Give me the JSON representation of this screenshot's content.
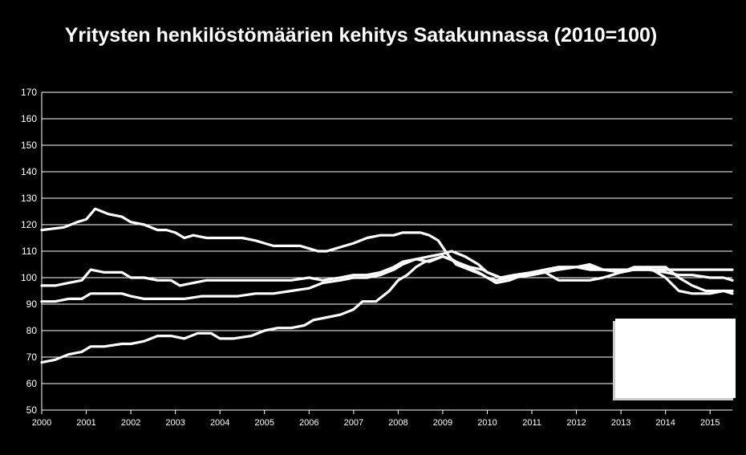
{
  "chart_data": {
    "type": "line",
    "title": "Yritysten henkilöstömäärien kehitys Satakunnassa (2010=100)",
    "xlabel": "",
    "ylabel": "",
    "ylim": [
      50,
      170
    ],
    "xlim": [
      2000,
      2015.5
    ],
    "y_ticks": [
      "50",
      "60",
      "70",
      "80",
      "90",
      "100",
      "110",
      "120",
      "130",
      "140",
      "150",
      "160",
      "170"
    ],
    "x_ticks": [
      "2000",
      "2001",
      "2002",
      "2003",
      "2004",
      "2005",
      "2006",
      "2007",
      "2008",
      "2009",
      "2010",
      "2011",
      "2012",
      "2013",
      "2014",
      "2015"
    ],
    "grid": true,
    "legend": "none",
    "colors": {
      "background": "#000000",
      "lines": "#ffffff",
      "grid": "#ffffff",
      "legend_box": "#ffffff"
    },
    "series": [
      {
        "x": [
          2000,
          2000.5,
          2000.8,
          2001.0,
          2001.2,
          2001.5,
          2001.8,
          2002.0,
          2002.3,
          2002.6,
          2002.8,
          2003.0,
          2003.2,
          2003.4,
          2003.7,
          2004.0,
          2004.3,
          2004.5,
          2004.8,
          2005.0,
          2005.2,
          2005.4,
          2005.6,
          2005.8,
          2006.0,
          2006.2,
          2006.4,
          2006.6,
          2006.8,
          2007.0,
          2007.3,
          2007.6,
          2007.9,
          2008.1,
          2008.3,
          2008.5,
          2008.7,
          2008.9,
          2009.1,
          2009.3,
          2009.6,
          2009.9,
          2010.0,
          2010.2,
          2010.5,
          2010.8,
          2011.0,
          2011.3,
          2011.6,
          2012.0,
          2012.3,
          2012.6,
          2013.0,
          2013.3,
          2013.6,
          2013.9,
          2014.2,
          2014.5,
          2014.8,
          2015.0,
          2015.3,
          2015.5
        ],
        "y": [
          118,
          119,
          121,
          122,
          126,
          124,
          123,
          121,
          120,
          118,
          118,
          117,
          115,
          116,
          115,
          115,
          115,
          115,
          114,
          113,
          112,
          112,
          112,
          112,
          111,
          110,
          110,
          111,
          112,
          113,
          115,
          116,
          116,
          117,
          117,
          117,
          116,
          114,
          109,
          105,
          103,
          101,
          100,
          99,
          100,
          101,
          102,
          103,
          104,
          104,
          104,
          103,
          103,
          103,
          103,
          103,
          103,
          103,
          103,
          103,
          103,
          103
        ]
      },
      {
        "x": [
          2000,
          2000.3,
          2000.6,
          2000.9,
          2001.1,
          2001.4,
          2001.8,
          2002.0,
          2002.3,
          2002.6,
          2002.9,
          2003.1,
          2003.4,
          2003.7,
          2004.0,
          2004.4,
          2004.8,
          2005.2,
          2005.6,
          2006.0,
          2006.3,
          2006.7,
          2007.0,
          2007.3,
          2007.6,
          2007.9,
          2008.1,
          2008.4,
          2008.7,
          2009.0,
          2009.3,
          2009.6,
          2009.9,
          2010.0,
          2010.3,
          2010.6,
          2011.0,
          2011.3,
          2011.6,
          2012.0,
          2012.3,
          2012.6,
          2013.0,
          2013.3,
          2013.6,
          2014.0,
          2014.3,
          2014.6,
          2015.0,
          2015.3,
          2015.5
        ],
        "y": [
          97,
          97,
          98,
          99,
          103,
          102,
          102,
          100,
          100,
          99,
          99,
          97,
          98,
          99,
          99,
          99,
          99,
          99,
          99,
          100,
          99,
          100,
          101,
          101,
          102,
          104,
          106,
          107,
          106,
          108,
          106,
          104,
          103,
          102,
          100,
          101,
          102,
          103,
          104,
          104,
          103,
          103,
          103,
          103,
          103,
          102,
          101,
          101,
          100,
          100,
          99
        ]
      },
      {
        "x": [
          2000,
          2000.3,
          2000.6,
          2000.9,
          2001.1,
          2001.4,
          2001.8,
          2002.0,
          2002.3,
          2002.6,
          2002.9,
          2003.2,
          2003.6,
          2004.0,
          2004.4,
          2004.8,
          2005.2,
          2005.6,
          2006.0,
          2006.3,
          2006.7,
          2007.0,
          2007.3,
          2007.6,
          2007.9,
          2008.1,
          2008.4,
          2008.7,
          2009.0,
          2009.2,
          2009.5,
          2009.8,
          2010.0,
          2010.3,
          2010.6,
          2011.0,
          2011.3,
          2011.6,
          2012.0,
          2012.3,
          2012.6,
          2013.0,
          2013.3,
          2013.6,
          2014.0,
          2014.3,
          2014.6,
          2014.9,
          2015.1,
          2015.3,
          2015.5
        ],
        "y": [
          91,
          91,
          92,
          92,
          94,
          94,
          94,
          93,
          92,
          92,
          92,
          92,
          93,
          93,
          93,
          94,
          94,
          95,
          96,
          98,
          99,
          100,
          100,
          101,
          103,
          105,
          107,
          108,
          109,
          110,
          108,
          105,
          102,
          100,
          100,
          101,
          102,
          103,
          104,
          105,
          103,
          102,
          103,
          104,
          104,
          100,
          97,
          95,
          95,
          95,
          95
        ]
      },
      {
        "x": [
          2000,
          2000.3,
          2000.6,
          2000.9,
          2001.1,
          2001.4,
          2001.8,
          2002.0,
          2002.3,
          2002.6,
          2002.9,
          2003.2,
          2003.5,
          2003.8,
          2004.0,
          2004.3,
          2004.7,
          2005.0,
          2005.3,
          2005.6,
          2005.9,
          2006.1,
          2006.4,
          2006.7,
          2007.0,
          2007.2,
          2007.5,
          2007.8,
          2008.0,
          2008.2,
          2008.4,
          2008.6,
          2008.8,
          2009.0,
          2009.2,
          2009.5,
          2009.8,
          2010.0,
          2010.2,
          2010.5,
          2010.8,
          2011.0,
          2011.3,
          2011.6,
          2012.0,
          2012.3,
          2012.6,
          2013.0,
          2013.3,
          2013.6,
          2014.0,
          2014.3,
          2014.6,
          2015.0,
          2015.3,
          2015.5
        ],
        "y": [
          68,
          69,
          71,
          72,
          74,
          74,
          75,
          75,
          76,
          78,
          78,
          77,
          79,
          79,
          77,
          77,
          78,
          80,
          81,
          81,
          82,
          84,
          85,
          86,
          88,
          91,
          91,
          95,
          99,
          101,
          104,
          106,
          107,
          108,
          107,
          104,
          102,
          100,
          98,
          99,
          101,
          102,
          102,
          99,
          99,
          99,
          100,
          102,
          104,
          104,
          100,
          95,
          94,
          94,
          95,
          94
        ]
      }
    ]
  }
}
